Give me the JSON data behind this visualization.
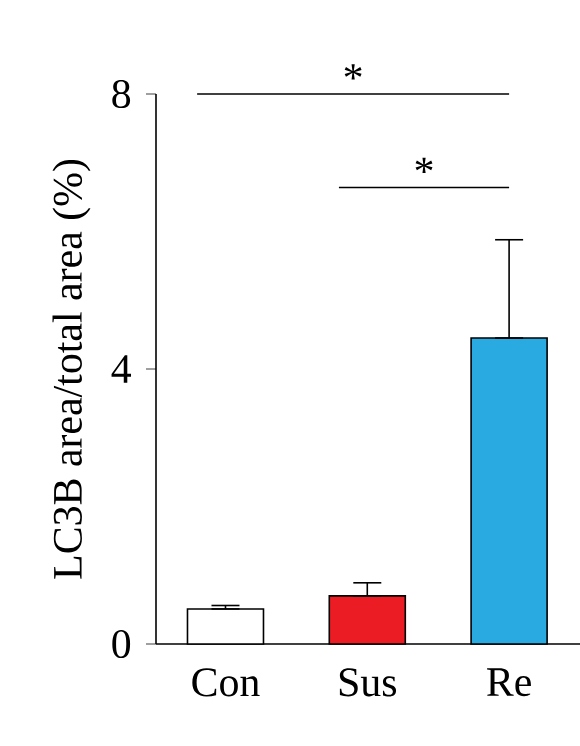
{
  "chart_data": {
    "type": "bar",
    "ylabel": "LC3B area/total area (%)",
    "categories": [
      "Con",
      "Sus",
      "Re"
    ],
    "values": [
      0.51,
      0.7,
      4.45
    ],
    "colors": [
      "#ffffff",
      "#ec1c24",
      "#29abe2"
    ],
    "errors": [
      [
        0.51,
        0.56
      ],
      [
        0.7,
        0.89
      ],
      [
        4.45,
        5.88
      ]
    ],
    "ylim": [
      0,
      8
    ],
    "yticks": [
      0,
      4,
      8
    ],
    "grid": false,
    "annotations": [
      "*",
      "*"
    ]
  }
}
